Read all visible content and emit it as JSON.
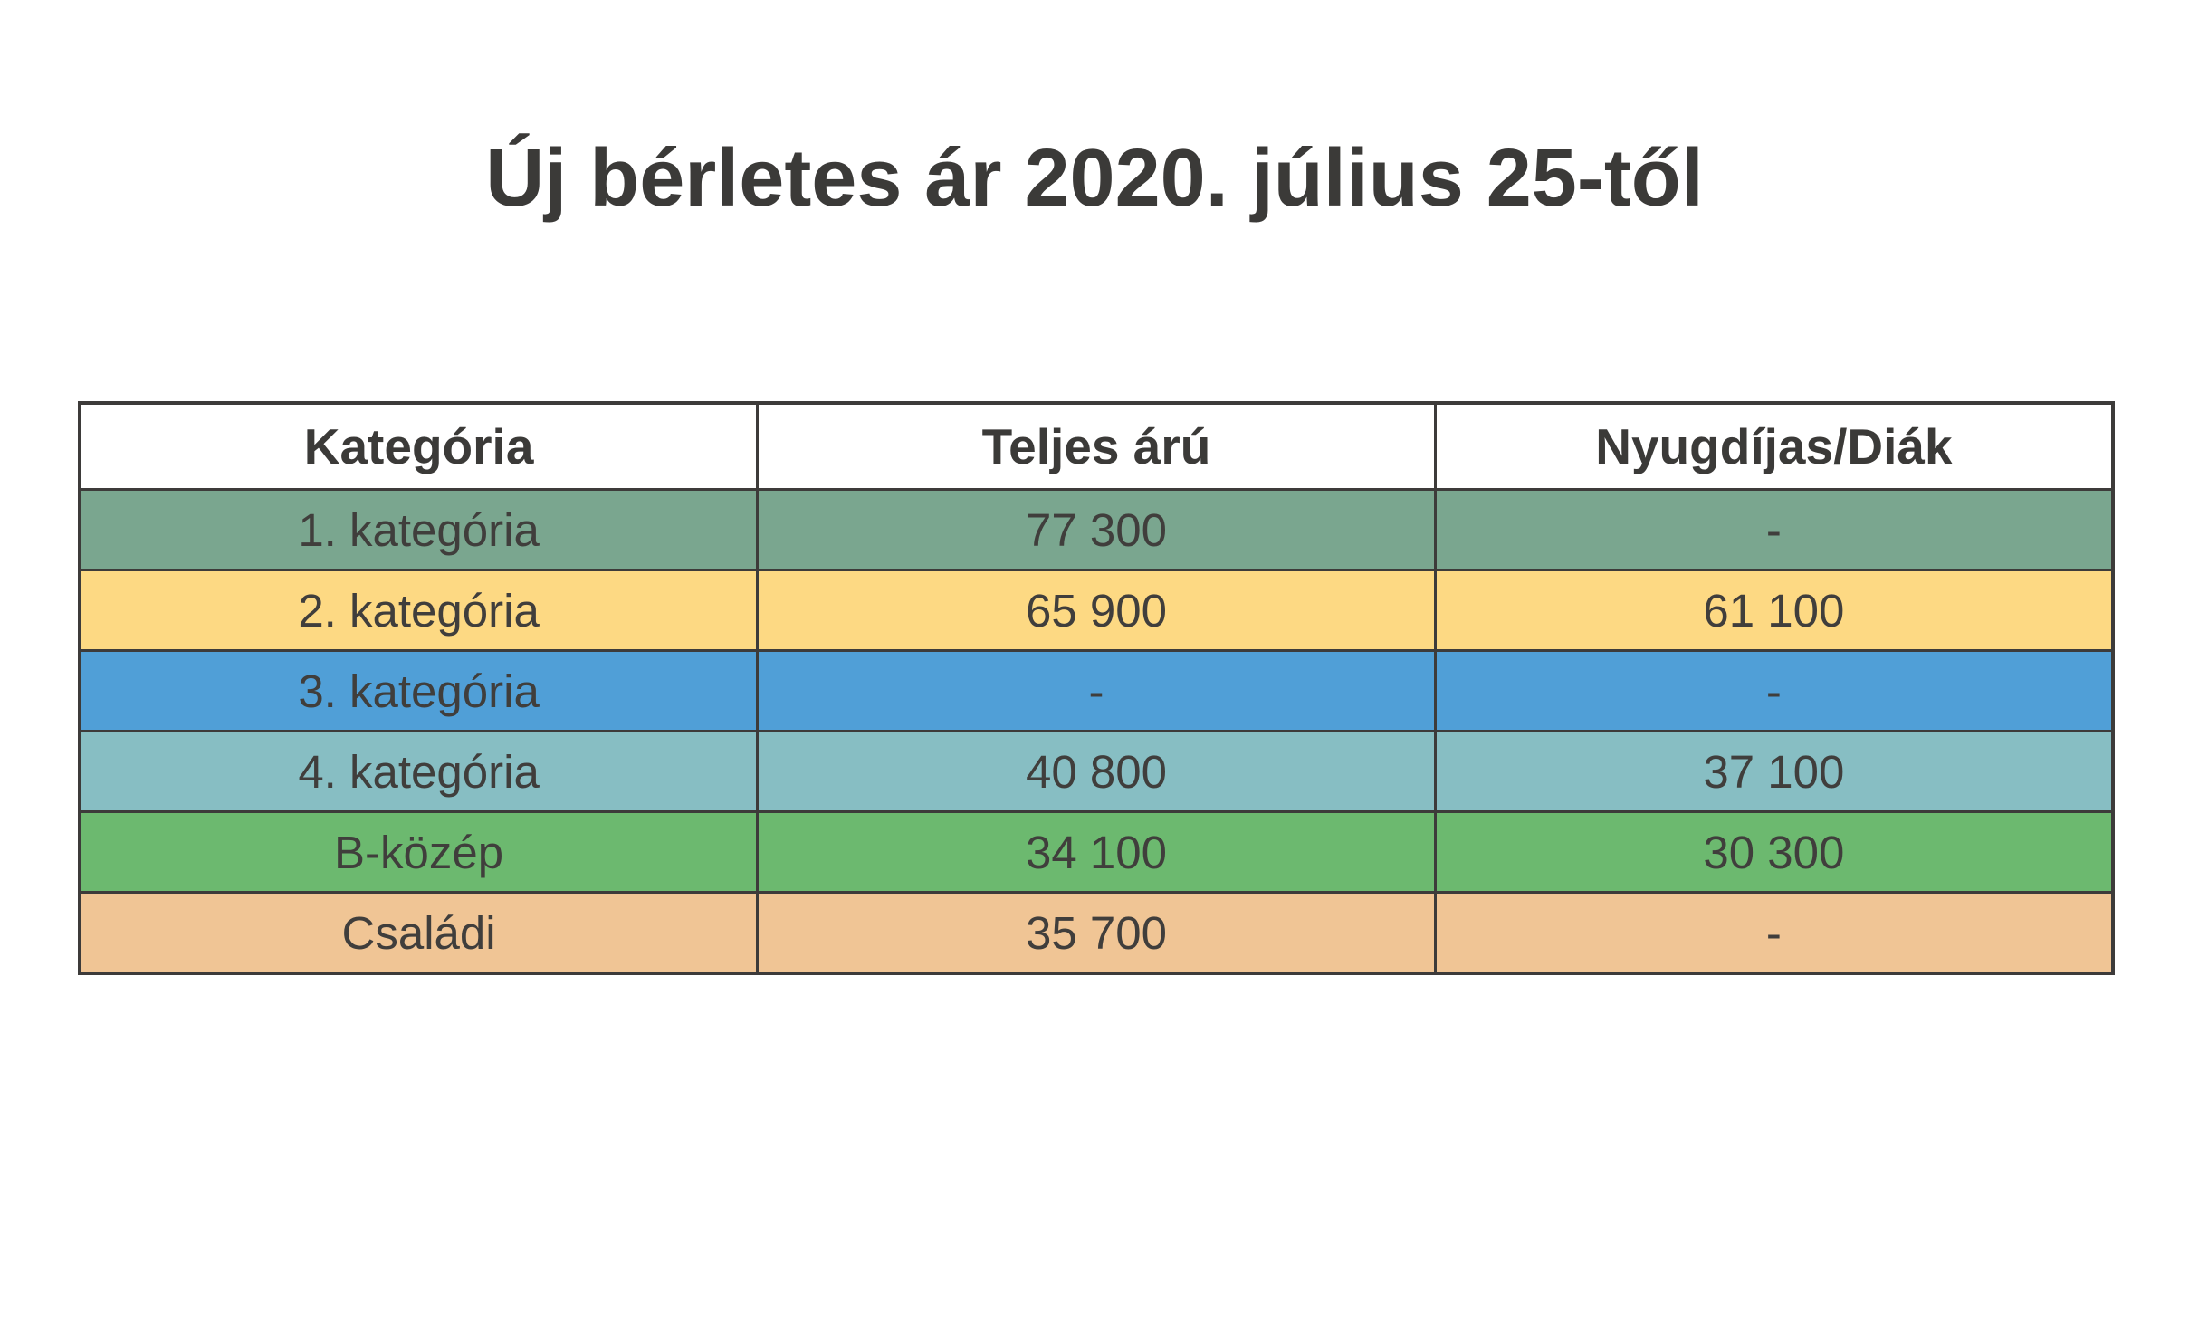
{
  "title": "Új bérletes ár 2020. július 25-től",
  "colors": {
    "background": "#FFFFFF",
    "text": "#403E3C",
    "title_text": "#3B3A38",
    "border": "#3D3B3A",
    "header_background": "#FFFFFF"
  },
  "table": {
    "headers": {
      "category": "Kategória",
      "full_price": "Teljes árú",
      "discount": "Nyugdíjas/Diák"
    },
    "rows": [
      {
        "category": "1. kategória",
        "full_price": "77 300",
        "discount": "-",
        "color": "#7AA68F"
      },
      {
        "category": "2. kategória",
        "full_price": "65 900",
        "discount": "61 100",
        "color": "#FDD983"
      },
      {
        "category": "3. kategória",
        "full_price": "-",
        "discount": "-",
        "color": "#509FD7"
      },
      {
        "category": "4. kategória",
        "full_price": "40 800",
        "discount": "37 100",
        "color": "#87BEC3"
      },
      {
        "category": "B-közép",
        "full_price": "34 100",
        "discount": "30 300",
        "color": "#6CB96F"
      },
      {
        "category": "Családi",
        "full_price": "35 700",
        "discount": "-",
        "color": "#F0C595"
      }
    ]
  },
  "chart_data": {
    "type": "table",
    "title": "Új bérletes ár 2020. július 25-től",
    "columns": [
      "Kategória",
      "Teljes árú",
      "Nyugdíjas/Diák"
    ],
    "rows": [
      [
        "1. kategória",
        "77 300",
        "-"
      ],
      [
        "2. kategória",
        "65 900",
        "61 100"
      ],
      [
        "3. kategória",
        "-",
        "-"
      ],
      [
        "4. kategória",
        "40 800",
        "37 100"
      ],
      [
        "B-közép",
        "34 100",
        "30 300"
      ],
      [
        "Családi",
        "35 700",
        "-"
      ]
    ],
    "numeric_full_price": [
      77300,
      65900,
      null,
      40800,
      34100,
      35700
    ],
    "numeric_discount": [
      null,
      61100,
      null,
      37100,
      30300,
      null
    ],
    "row_colors": [
      "#7AA68F",
      "#FDD983",
      "#509FD7",
      "#87BEC3",
      "#6CB96F",
      "#F0C595"
    ],
    "layout_hints": {
      "header_background": "#FFFFFF",
      "grid": true,
      "value_unit": "HUF"
    }
  }
}
